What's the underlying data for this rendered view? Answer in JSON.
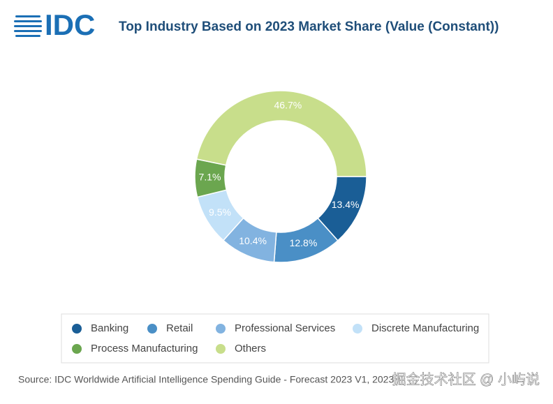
{
  "logo": "IDC",
  "chart_data": {
    "type": "donut",
    "title": "Top Industry Based on 2023 Market Share (Value (Constant))",
    "categories": [
      "Banking",
      "Retail",
      "Professional Services",
      "Discrete Manufacturing",
      "Process Manufacturing",
      "Others"
    ],
    "values": [
      13.4,
      12.8,
      10.4,
      9.5,
      7.1,
      46.7
    ],
    "value_labels": [
      "13.4%",
      "12.8%",
      "10.4%",
      "9.5%",
      "7.1%",
      "46.7%"
    ],
    "colors": [
      "#1a5e96",
      "#4a8fc6",
      "#82b3e0",
      "#c2e1f8",
      "#6ba64f",
      "#c8de8b"
    ],
    "legend": "bottom",
    "source": "Source: IDC Worldwide Artificial Intelligence Spending Guide - Forecast 2023 V1, 2023"
  },
  "watermark": "掘金技术社区 @ 小屿说"
}
